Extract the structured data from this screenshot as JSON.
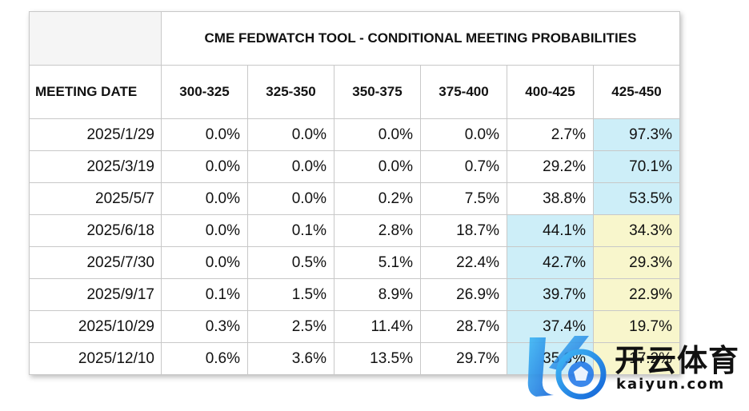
{
  "table": {
    "title": "CME FEDWATCH TOOL - CONDITIONAL MEETING PROBABILITIES",
    "date_header": "MEETING DATE",
    "columns": [
      "300-325",
      "325-350",
      "350-375",
      "375-400",
      "400-425",
      "425-450"
    ],
    "rows": [
      {
        "date": "2025/1/29",
        "values": [
          "0.0%",
          "0.0%",
          "0.0%",
          "0.0%",
          "2.7%",
          "97.3%"
        ],
        "highlight": [
          null,
          null,
          null,
          null,
          null,
          "blue"
        ]
      },
      {
        "date": "2025/3/19",
        "values": [
          "0.0%",
          "0.0%",
          "0.0%",
          "0.7%",
          "29.2%",
          "70.1%"
        ],
        "highlight": [
          null,
          null,
          null,
          null,
          null,
          "blue"
        ]
      },
      {
        "date": "2025/5/7",
        "values": [
          "0.0%",
          "0.0%",
          "0.2%",
          "7.5%",
          "38.8%",
          "53.5%"
        ],
        "highlight": [
          null,
          null,
          null,
          null,
          null,
          "blue"
        ]
      },
      {
        "date": "2025/6/18",
        "values": [
          "0.0%",
          "0.1%",
          "2.8%",
          "18.7%",
          "44.1%",
          "34.3%"
        ],
        "highlight": [
          null,
          null,
          null,
          null,
          "blue",
          "yellow"
        ]
      },
      {
        "date": "2025/7/30",
        "values": [
          "0.0%",
          "0.5%",
          "5.1%",
          "22.4%",
          "42.7%",
          "29.3%"
        ],
        "highlight": [
          null,
          null,
          null,
          null,
          "blue",
          "yellow"
        ]
      },
      {
        "date": "2025/9/17",
        "values": [
          "0.1%",
          "1.5%",
          "8.9%",
          "26.9%",
          "39.7%",
          "22.9%"
        ],
        "highlight": [
          null,
          null,
          null,
          null,
          "blue",
          "yellow"
        ]
      },
      {
        "date": "2025/10/29",
        "values": [
          "0.3%",
          "2.5%",
          "11.4%",
          "28.7%",
          "37.4%",
          "19.7%"
        ],
        "highlight": [
          null,
          null,
          null,
          null,
          "blue",
          "yellow"
        ]
      },
      {
        "date": "2025/12/10",
        "values": [
          "0.6%",
          "3.6%",
          "13.5%",
          "29.7%",
          "35.3%",
          "17.2%"
        ],
        "highlight": [
          null,
          null,
          null,
          null,
          "blue",
          "yellow"
        ]
      }
    ]
  },
  "colors": {
    "highlight_blue": "#cdeef8",
    "highlight_yellow": "#f8f6cc",
    "border": "#c8c8c8"
  },
  "watermark": {
    "cn_text": "开云体育",
    "en_text": "kaiyun.com"
  }
}
